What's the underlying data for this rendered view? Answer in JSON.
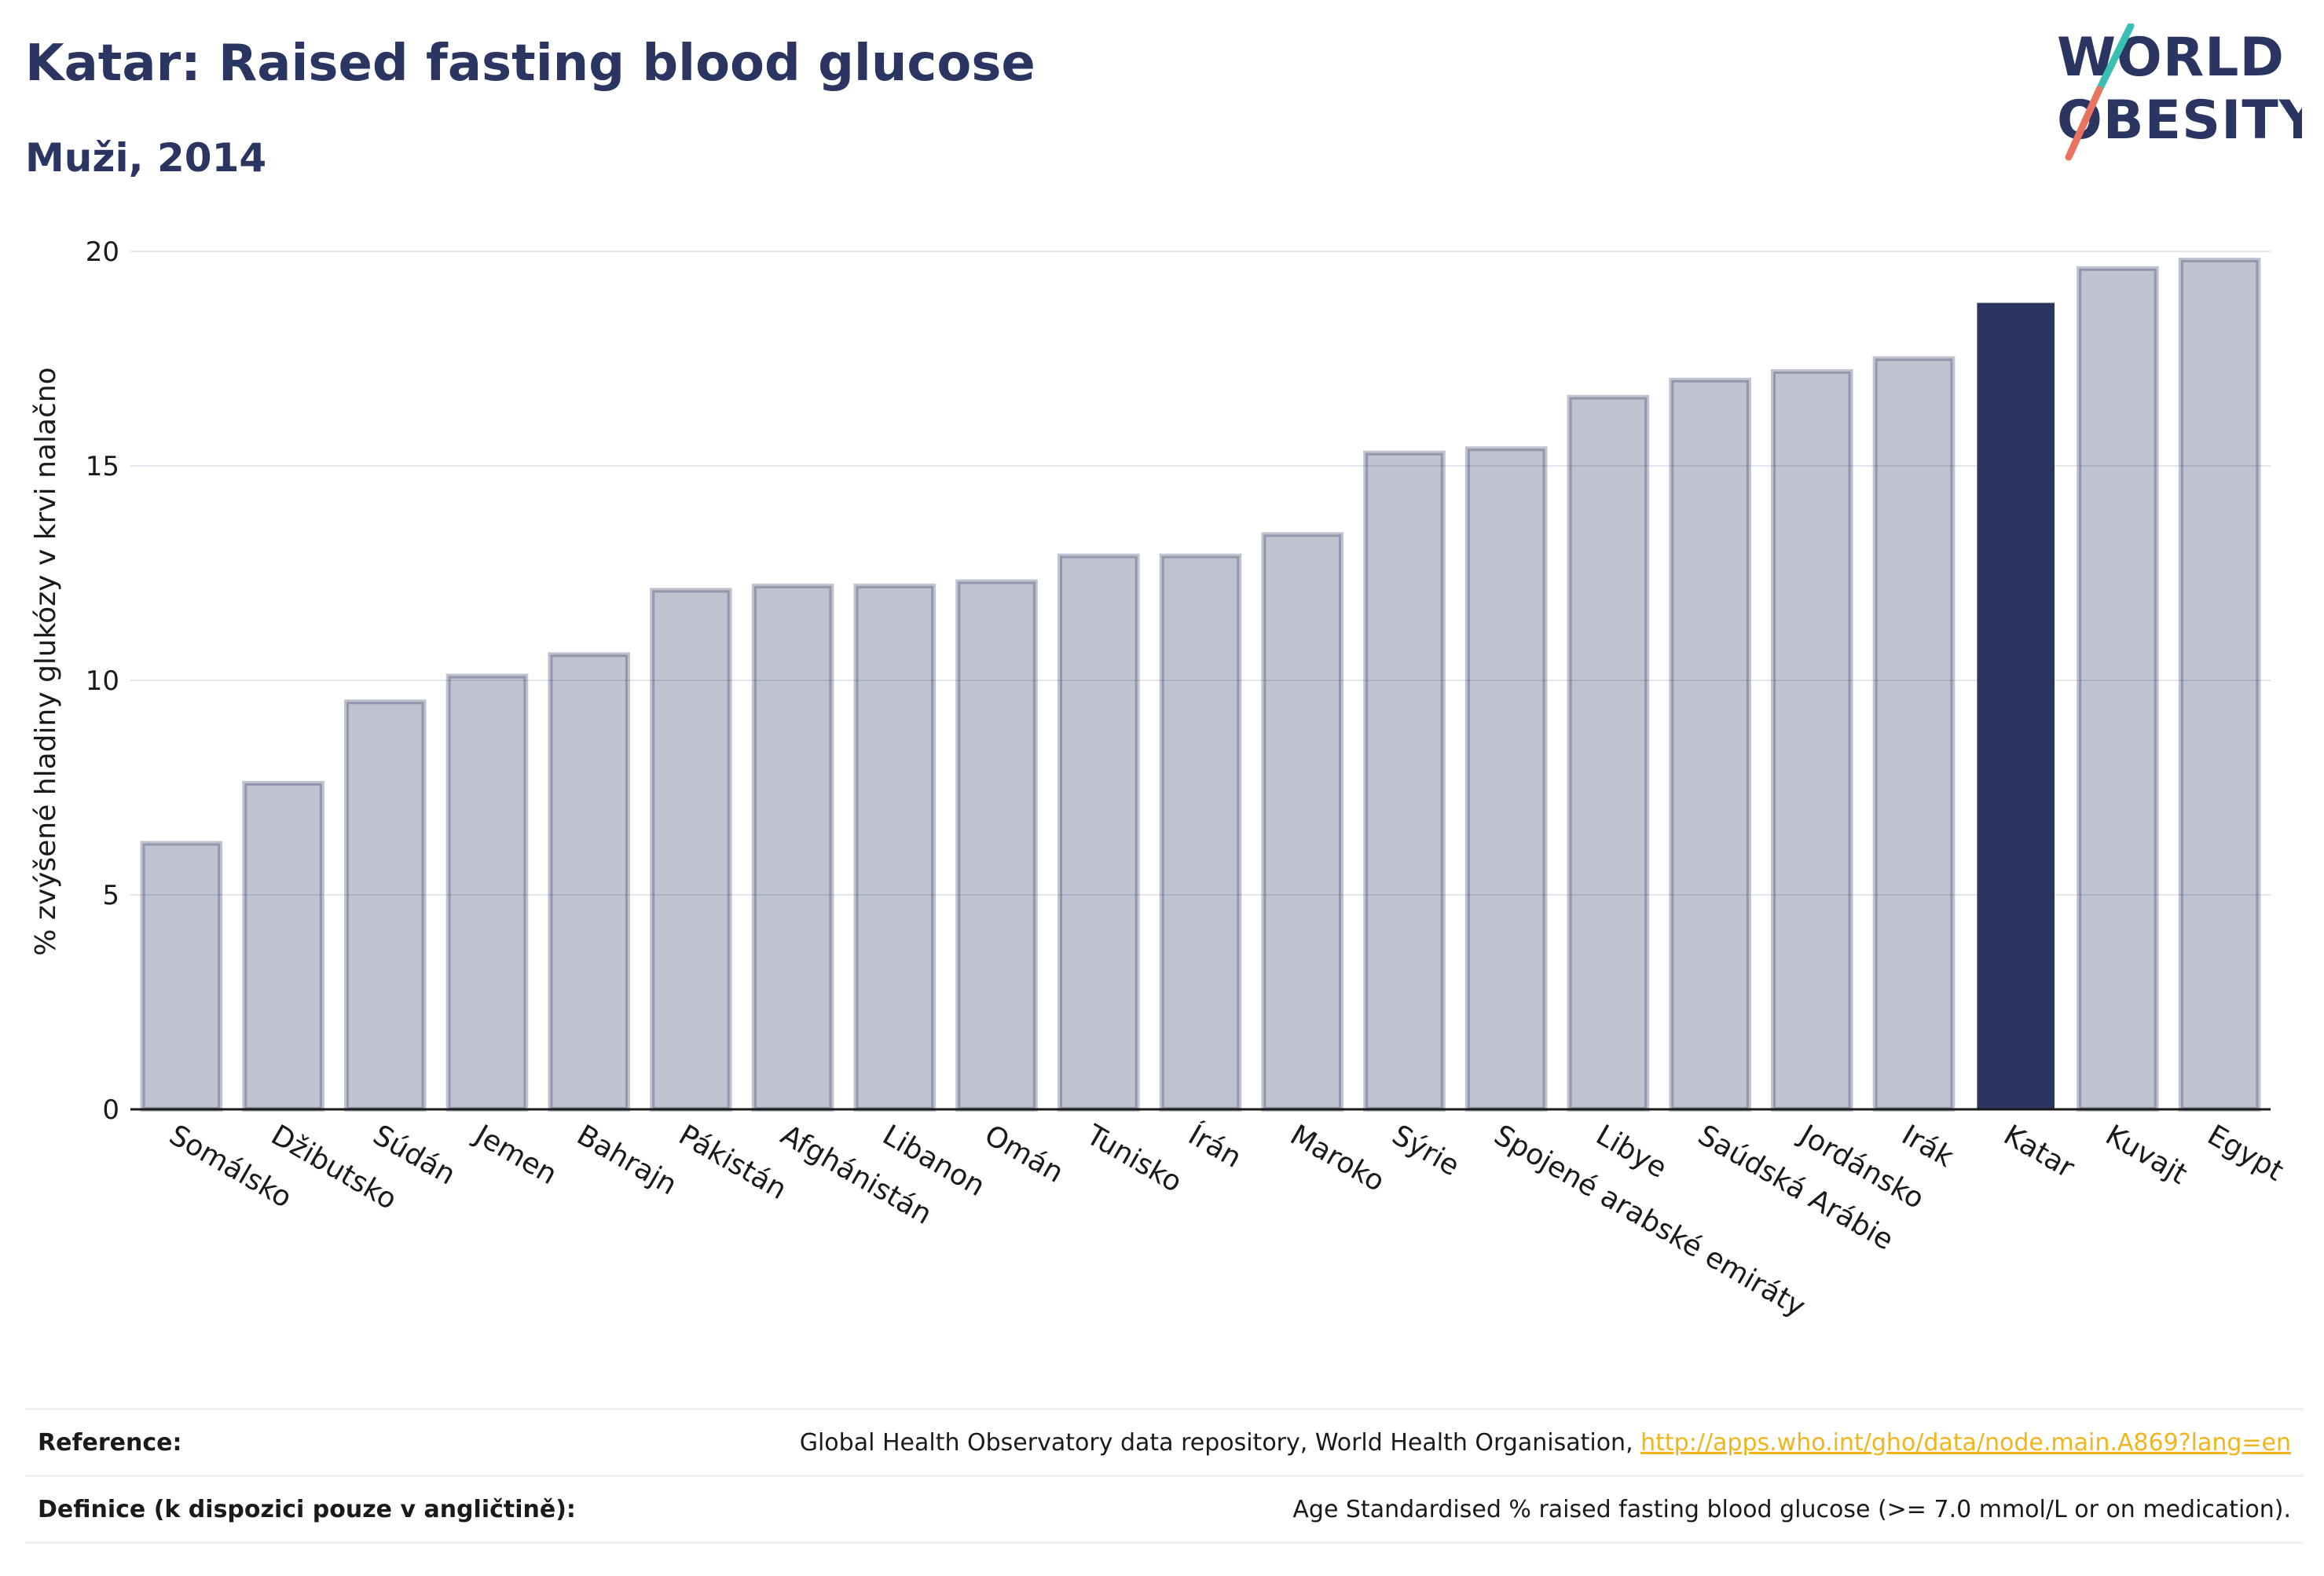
{
  "header": {
    "title": "Katar: Raised fasting blood glucose",
    "subtitle": "Muži, 2014"
  },
  "logo": {
    "line1": "WORLD",
    "line2": "OBESITY",
    "colors": {
      "text": "#2a3561",
      "slash_teal": "#3bbfb3",
      "slash_coral": "#e8735f"
    }
  },
  "chart_data": {
    "type": "bar",
    "categories": [
      "Somálsko",
      "Džibutsko",
      "Súdán",
      "Jemen",
      "Bahrajn",
      "Pákistán",
      "Afghánistán",
      "Libanon",
      "Omán",
      "Tunisko",
      "Írán",
      "Maroko",
      "Sýrie",
      "Spojené arabské emiráty",
      "Libye",
      "Saúdská Arábie",
      "Jordánsko",
      "Irák",
      "Katar",
      "Kuvajt",
      "Egypt"
    ],
    "values": [
      6.2,
      7.6,
      9.5,
      10.1,
      10.6,
      12.1,
      12.2,
      12.2,
      12.3,
      12.9,
      12.9,
      13.4,
      15.3,
      15.4,
      16.6,
      17.0,
      17.2,
      17.5,
      18.8,
      19.6,
      19.8
    ],
    "highlight": "Katar",
    "title": "",
    "xlabel": "",
    "ylabel": "% zvýšené hladiny glukózy v krvi nalačno",
    "ylim": [
      0,
      20
    ],
    "yticks": [
      0,
      5,
      10,
      15,
      20
    ],
    "grid": true,
    "colors": {
      "bar": "#2a3561",
      "highlight": "#2a3561"
    }
  },
  "footer": {
    "reference_label": "Reference:",
    "reference_text": "Global Health Observatory data repository, World Health Organisation, ",
    "reference_link": "http://apps.who.int/gho/data/node.main.A869?lang=en",
    "definition_label": "Definice (k dispozici pouze v angličtině):",
    "definition_text": "Age Standardised % raised fasting blood glucose (>= 7.0 mmol/L or on medication)."
  }
}
